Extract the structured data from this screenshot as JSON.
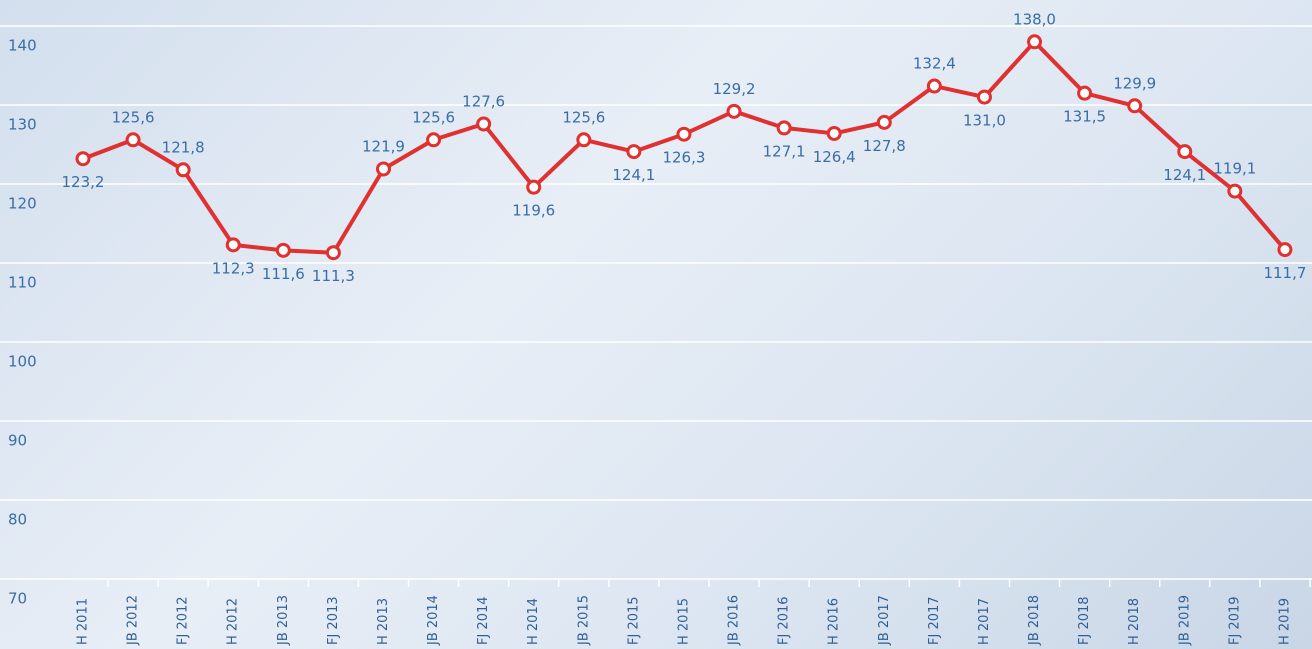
{
  "chart_data": {
    "type": "line",
    "categories": [
      "H 2011",
      "JB 2012",
      "FJ 2012",
      "H 2012",
      "JB 2013",
      "FJ 2013",
      "H 2013",
      "JB 2014",
      "FJ 2014",
      "H 2014",
      "JB 2015",
      "FJ 2015",
      "H 2015",
      "JB 2016",
      "FJ 2016",
      "H 2016",
      "JB 2017",
      "FJ 2017",
      "H 2017",
      "JB 2018",
      "FJ 2018",
      "H 2018",
      "JB 2019",
      "FJ 2019",
      "H 2019"
    ],
    "values": [
      123.2,
      125.6,
      121.8,
      112.3,
      111.6,
      111.3,
      121.9,
      125.6,
      127.6,
      119.6,
      125.6,
      124.1,
      126.3,
      129.2,
      127.1,
      126.4,
      127.8,
      132.4,
      131.0,
      138.0,
      131.5,
      129.9,
      124.1,
      119.1,
      111.7
    ],
    "value_labels": [
      "123,2",
      "125,6",
      "121,8",
      "112,3",
      "111,6",
      "111,3",
      "121,9",
      "125,6",
      "127,6",
      "119,6",
      "125,6",
      "124,1",
      "126,3",
      "129,2",
      "127,1",
      "126,4",
      "127,8",
      "132,4",
      "131,0",
      "138,0",
      "131,5",
      "129,9",
      "124,1",
      "119,1",
      "111,7"
    ],
    "color": "#e03030",
    "ylim": [
      70,
      140
    ],
    "yticks": [
      70,
      80,
      90,
      100,
      110,
      120,
      130,
      140
    ],
    "grid": true
  }
}
